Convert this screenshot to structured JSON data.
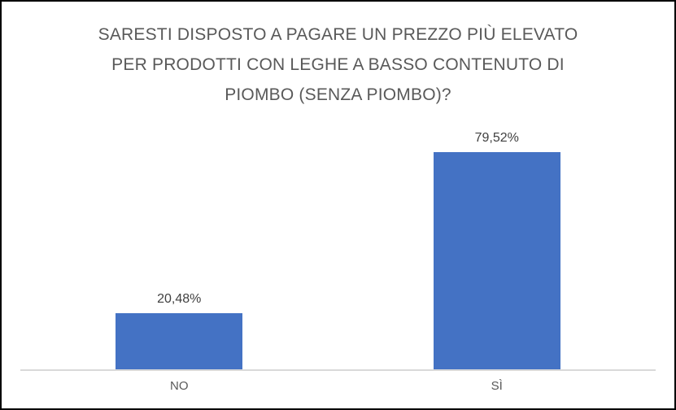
{
  "chart_data": {
    "type": "bar",
    "title": "SARESTI DISPOSTO A PAGARE UN PREZZO PIÙ ELEVATO PER PRODOTTI CON LEGHE A BASSO CONTENUTO DI PIOMBO (SENZA PIOMBO)?",
    "title_lines": [
      "SARESTI DISPOSTO A PAGARE UN PREZZO PIÙ ELEVATO",
      "PER PRODOTTI CON LEGHE A BASSO CONTENUTO DI",
      "PIOMBO (SENZA PIOMBO)?"
    ],
    "categories": [
      "NO",
      "SÌ"
    ],
    "values": [
      20.48,
      79.52
    ],
    "data_labels": [
      "20,48%",
      "79,52%"
    ],
    "xlabel": "",
    "ylabel": "",
    "ylim": [
      0,
      100
    ],
    "grid": false,
    "legend": false,
    "colors": {
      "bar": "#4472C4",
      "title": "#595959",
      "data_label": "#404040",
      "category_label": "#595959",
      "axis_line": "#D9D9D9",
      "border": "#000000",
      "background": "#FFFFFF"
    }
  }
}
